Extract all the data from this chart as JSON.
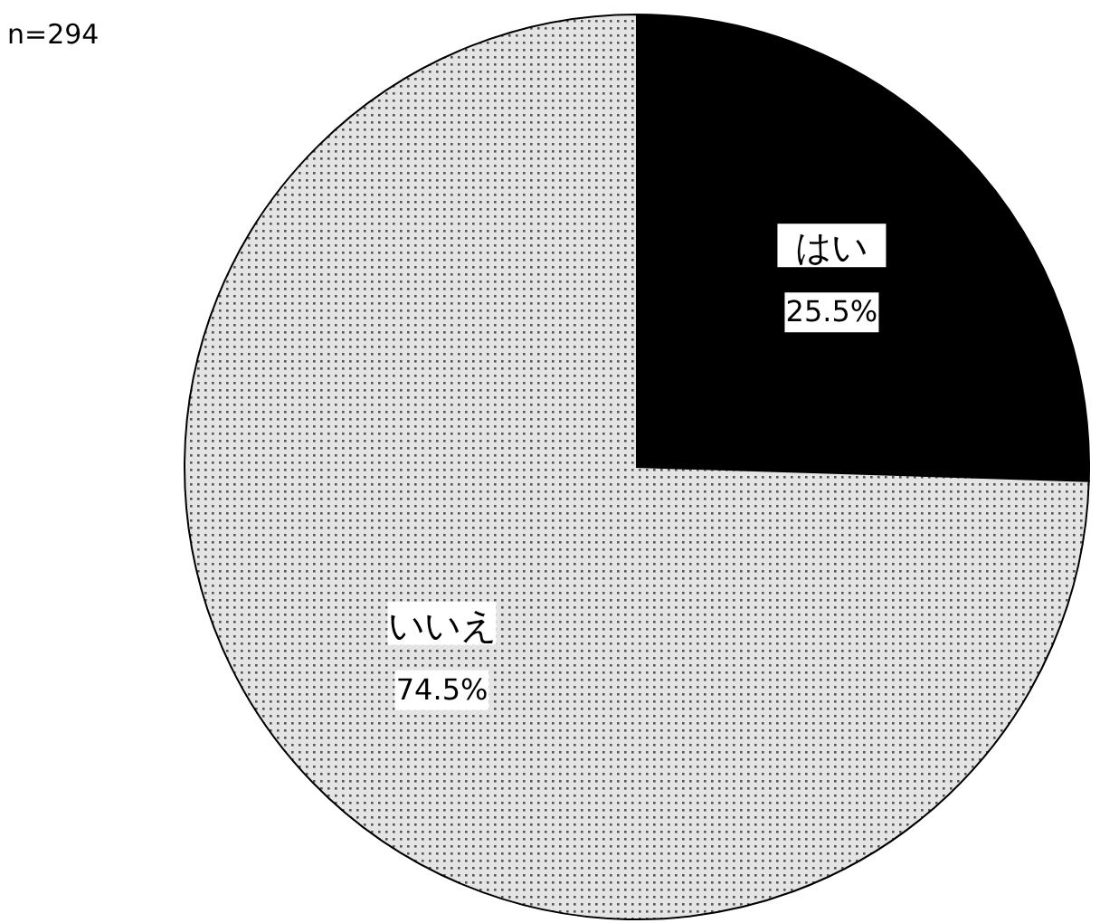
{
  "chart_data": {
    "type": "pie",
    "categories": [
      "はい",
      "いいえ"
    ],
    "values": [
      25.5,
      74.5
    ],
    "value_labels": [
      "25.5%",
      "74.5%"
    ],
    "colors": [
      "#000000",
      "#e4e4e4"
    ],
    "annotations": [
      "n=294"
    ]
  }
}
